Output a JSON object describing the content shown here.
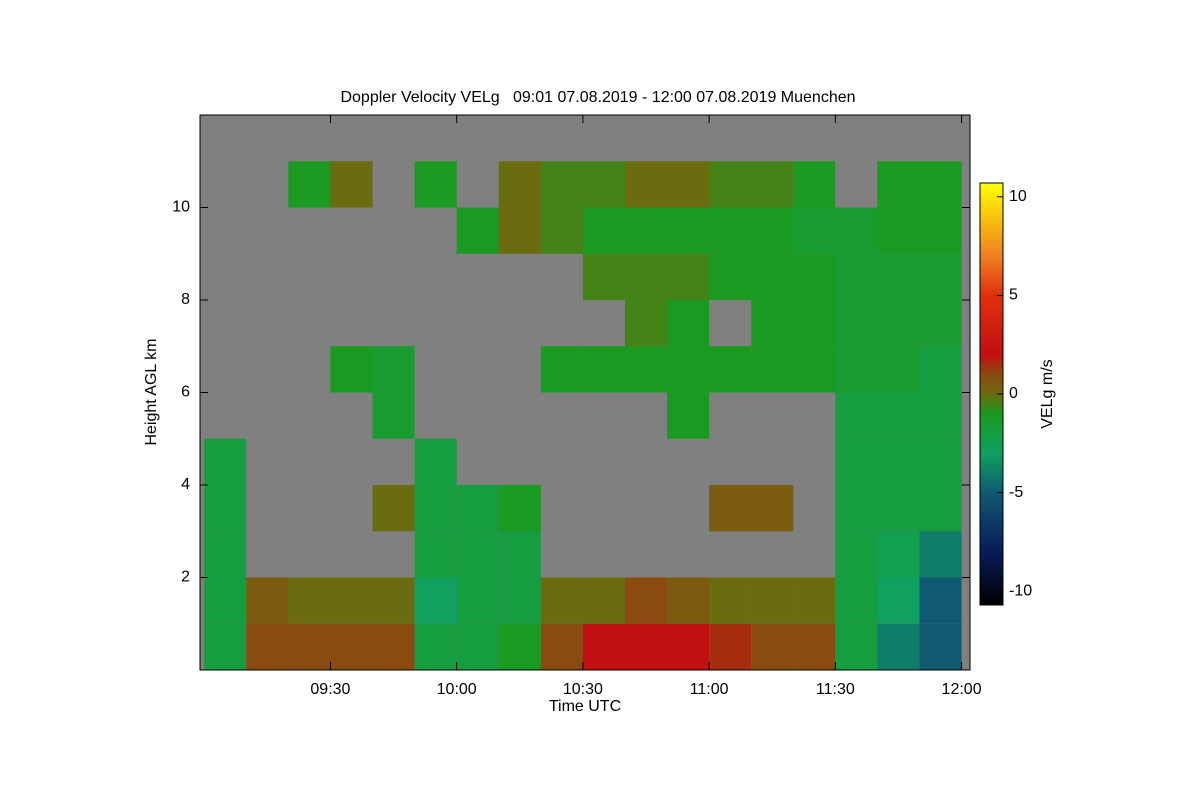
{
  "chart_data": {
    "type": "heatmap",
    "title": "Doppler Velocity VELg   09:01 07.08.2019 - 12:00 07.08.2019 Muenchen",
    "x_label": "Time UTC",
    "y_label": "Height AGL km",
    "colorbar_label": "VELg m/s",
    "x_edges": [
      540,
      550,
      560,
      570,
      580,
      590,
      600,
      610,
      620,
      630,
      640,
      650,
      660,
      670,
      680,
      690,
      700,
      710,
      720
    ],
    "y_edges": [
      0,
      1,
      2,
      3,
      4,
      5,
      6,
      7,
      8,
      9,
      10,
      11,
      12
    ],
    "z": [
      [
        -2,
        1,
        1,
        1,
        1,
        -2,
        -2,
        -1,
        1,
        2,
        2,
        2,
        1.5,
        1,
        1,
        -2,
        -4,
        -5
      ],
      [
        -2,
        0.5,
        0,
        0,
        0,
        -3,
        -2,
        -2,
        0,
        0,
        1,
        0.5,
        0,
        0,
        0,
        -2,
        -3,
        -5
      ],
      [
        -2,
        null,
        null,
        null,
        null,
        -2,
        -2,
        -2,
        null,
        null,
        null,
        null,
        null,
        null,
        null,
        -2,
        -2.5,
        -4
      ],
      [
        -2,
        null,
        null,
        null,
        0,
        -2,
        -2,
        -1,
        null,
        null,
        null,
        null,
        0.5,
        0.5,
        null,
        -2,
        -2,
        -2
      ],
      [
        -2,
        null,
        null,
        null,
        null,
        -2,
        null,
        null,
        null,
        null,
        null,
        null,
        null,
        null,
        null,
        -2,
        -2,
        -2
      ],
      [
        null,
        null,
        null,
        null,
        -1.5,
        null,
        null,
        null,
        null,
        null,
        null,
        -1,
        null,
        null,
        null,
        -2,
        -2,
        -2
      ],
      [
        null,
        null,
        null,
        -1,
        -1.5,
        null,
        null,
        null,
        -1,
        -1,
        -1,
        -1,
        -1,
        -1,
        -1,
        -1.5,
        -1.5,
        -2
      ],
      [
        null,
        null,
        null,
        null,
        null,
        null,
        null,
        null,
        null,
        null,
        -0.5,
        -1,
        null,
        -1,
        -1,
        -1.5,
        -1.5,
        -1.5
      ],
      [
        null,
        null,
        null,
        null,
        null,
        null,
        null,
        null,
        null,
        -0.5,
        -0.5,
        -0.5,
        -1,
        -1,
        -1,
        -1.5,
        -1.5,
        -1.5
      ],
      [
        null,
        null,
        null,
        null,
        null,
        null,
        -1,
        0,
        -0.5,
        -1,
        -1,
        -1,
        -1,
        -1,
        -1.5,
        -1.5,
        -1,
        -1
      ],
      [
        null,
        null,
        -1,
        0,
        null,
        -1,
        null,
        0,
        -0.5,
        -0.5,
        0,
        0,
        -0.5,
        -0.5,
        -1,
        null,
        -1,
        -1
      ],
      [
        null,
        null,
        null,
        null,
        null,
        null,
        null,
        null,
        null,
        null,
        null,
        null,
        null,
        null,
        null,
        null,
        null,
        null
      ]
    ],
    "xlim": [
      539,
      722
    ],
    "ylim": [
      0,
      12
    ],
    "xticks": [
      {
        "value": 570,
        "label": "09:30"
      },
      {
        "value": 600,
        "label": "10:00"
      },
      {
        "value": 630,
        "label": "10:30"
      },
      {
        "value": 660,
        "label": "11:00"
      },
      {
        "value": 690,
        "label": "11:30"
      },
      {
        "value": 720,
        "label": "12:00"
      }
    ],
    "yticks": [
      2,
      4,
      6,
      8,
      10
    ],
    "clim": [
      -10.7,
      10.7
    ],
    "cticks": [
      -10,
      -5,
      0,
      5,
      10
    ],
    "no_data_color": "#808080",
    "colorscale": [
      [
        -10.7,
        "#000000"
      ],
      [
        -8,
        "#0a1a5a"
      ],
      [
        -5,
        "#0f5a70"
      ],
      [
        -3,
        "#10a060"
      ],
      [
        -1,
        "#1a9a20"
      ],
      [
        0,
        "#6b6b10"
      ],
      [
        1,
        "#8a4a10"
      ],
      [
        2,
        "#c01010"
      ],
      [
        5,
        "#e03010"
      ],
      [
        7,
        "#f08020"
      ],
      [
        10.7,
        "#ffff00"
      ]
    ]
  }
}
